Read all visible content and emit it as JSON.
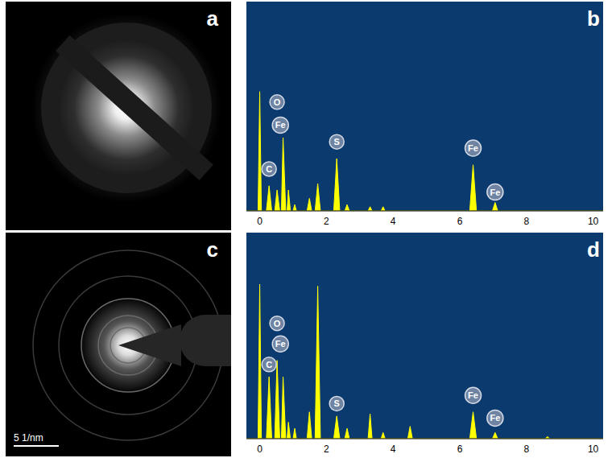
{
  "images": [
    {
      "panel": "a"
    },
    {
      "panel": "c",
      "scale_bar": "5 1/nm"
    }
  ],
  "chart_data": [
    {
      "panel": "b",
      "type": "area",
      "color": "#ffff00",
      "x": [
        -0.4,
        -0.05,
        0,
        0.05,
        0.2,
        0.28,
        0.36,
        0.45,
        0.52,
        0.6,
        0.65,
        0.7,
        0.78,
        0.82,
        0.86,
        0.92,
        1.0,
        1.05,
        1.1,
        1.42,
        1.49,
        1.56,
        1.66,
        1.74,
        1.82,
        2.22,
        2.31,
        2.4,
        2.55,
        2.62,
        2.69,
        3.25,
        3.31,
        3.37,
        3.64,
        3.7,
        3.76,
        6.3,
        6.4,
        6.5,
        6.98,
        7.06,
        7.14,
        10.3
      ],
      "values": [
        0,
        0,
        57,
        0,
        0,
        12,
        0,
        0,
        10,
        0,
        0,
        35,
        0,
        0,
        10,
        0,
        0,
        3,
        0,
        0,
        6,
        0,
        0,
        13,
        0,
        0,
        25,
        0,
        0,
        3,
        0,
        0,
        2,
        0,
        0,
        2,
        0,
        0,
        22,
        0,
        0,
        4,
        0,
        0
      ],
      "xlim": [
        -0.4,
        10.3
      ],
      "xticks": [
        0,
        2,
        4,
        6,
        8,
        10
      ],
      "ylim": [
        0,
        100
      ],
      "yticks": [],
      "tick_labels": "x",
      "annotations": [
        {
          "text": "C",
          "x": 0.28,
          "y": 20
        },
        {
          "text": "O",
          "x": 0.52,
          "y": 52
        },
        {
          "text": "Fe",
          "x": 0.62,
          "y": 41
        },
        {
          "text": "S",
          "x": 2.31,
          "y": 33
        },
        {
          "text": "Fe",
          "x": 6.4,
          "y": 30
        },
        {
          "text": "Fe",
          "x": 7.06,
          "y": 9
        }
      ]
    },
    {
      "panel": "d",
      "type": "area",
      "color": "#ffff00",
      "x": [
        -0.4,
        -0.05,
        0,
        0.05,
        0.2,
        0.28,
        0.36,
        0.45,
        0.52,
        0.6,
        0.65,
        0.7,
        0.78,
        0.82,
        0.86,
        0.92,
        1.0,
        1.05,
        1.1,
        1.42,
        1.49,
        1.56,
        1.66,
        1.74,
        1.82,
        2.22,
        2.31,
        2.4,
        2.55,
        2.62,
        2.69,
        3.25,
        3.31,
        3.37,
        3.64,
        3.7,
        3.76,
        4.44,
        4.51,
        4.58,
        6.3,
        6.4,
        6.5,
        6.98,
        7.06,
        7.14,
        8.56,
        8.63,
        8.7,
        10.3
      ],
      "values": [
        0,
        0,
        75,
        0,
        0,
        30,
        0,
        0,
        38,
        0,
        0,
        30,
        0,
        0,
        8,
        0,
        0,
        5,
        0,
        0,
        13,
        0,
        0,
        74,
        0,
        0,
        11,
        0,
        0,
        5,
        0,
        0,
        12,
        0,
        0,
        3,
        0,
        0,
        6,
        0,
        0,
        13,
        0,
        0,
        3,
        0,
        0,
        1,
        0,
        0
      ],
      "xlim": [
        -0.4,
        10.3
      ],
      "xticks": [
        0,
        2,
        4,
        6,
        8,
        10
      ],
      "ylim": [
        0,
        100
      ],
      "yticks": [],
      "tick_labels": "x",
      "annotations": [
        {
          "text": "C",
          "x": 0.28,
          "y": 36
        },
        {
          "text": "O",
          "x": 0.52,
          "y": 56
        },
        {
          "text": "Fe",
          "x": 0.62,
          "y": 46
        },
        {
          "text": "S",
          "x": 2.31,
          "y": 17
        },
        {
          "text": "Fe",
          "x": 6.4,
          "y": 21
        },
        {
          "text": "Fe",
          "x": 7.06,
          "y": 10
        }
      ]
    }
  ]
}
